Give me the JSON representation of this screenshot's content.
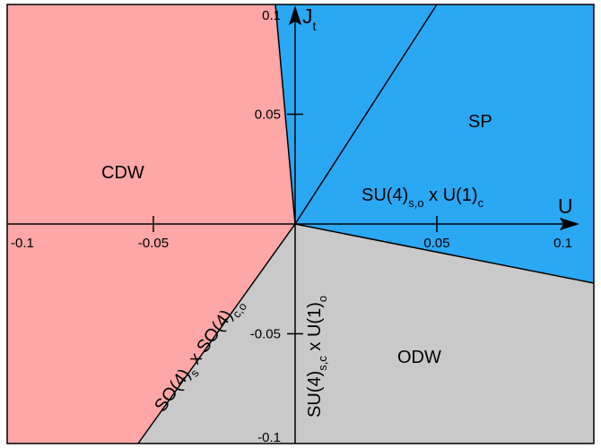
{
  "diagram": {
    "axes": {
      "x_label": "U",
      "y_label_main": "J",
      "y_label_sub": "t",
      "x_ticks": [
        {
          "value": -0.1,
          "label": "-0.1"
        },
        {
          "value": -0.05,
          "label": "-0.05"
        },
        {
          "value": 0.05,
          "label": "0.05"
        },
        {
          "value": 0.1,
          "label": "0.1"
        }
      ],
      "y_ticks": [
        {
          "value": 0.1,
          "label": "0.1"
        },
        {
          "value": 0.05,
          "label": "0.05"
        },
        {
          "value": -0.05,
          "label": "-0.05"
        },
        {
          "value": -0.1,
          "label": "-0.1"
        }
      ]
    },
    "phases": {
      "cdw": {
        "label": "CDW",
        "color": "#ffa6a6"
      },
      "sp": {
        "label": "SP",
        "color": "#2aa8f4"
      },
      "odw": {
        "label": "ODW",
        "color": "#c9c9c9"
      }
    },
    "boundaries": {
      "sp_odw": {
        "main": "SU(4)",
        "sub": "s,o",
        "suffix_main": " x U(1)",
        "suffix_sub": "c"
      },
      "cdw_odw": {
        "main": "SO(4)",
        "sub": "s",
        "mid_main": " x SO(4)",
        "mid_sub": "c,o"
      },
      "odw_vertical": {
        "main": "SU(4)",
        "sub": "s,c",
        "suffix_main": " x U(1)",
        "suffix_sub": "o"
      }
    }
  }
}
